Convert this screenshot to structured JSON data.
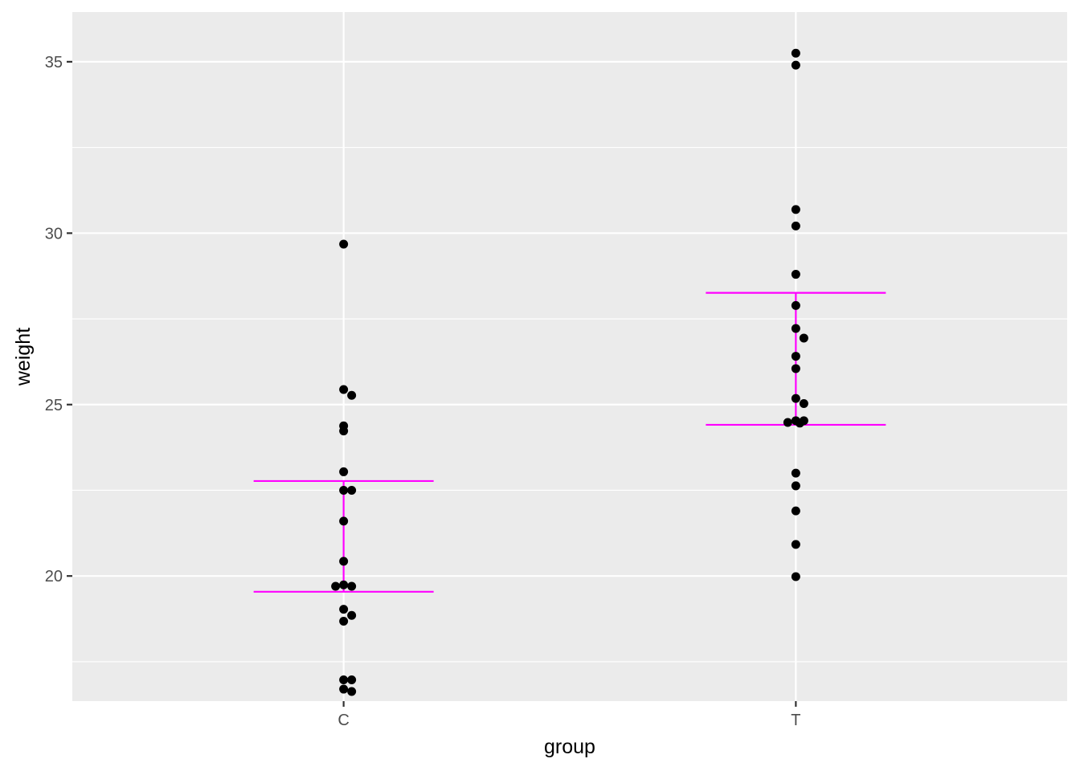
{
  "chart_data": {
    "type": "scatter",
    "xlabel": "group",
    "ylabel": "weight",
    "categories": [
      "C",
      "T"
    ],
    "ylim": [
      16.35,
      36.45
    ],
    "y_ticks": [
      20,
      25,
      30,
      35
    ],
    "grid": true,
    "points": [
      {
        "group": "C",
        "weight": 29.68
      },
      {
        "group": "C",
        "weight": 25.44
      },
      {
        "group": "C",
        "weight": 25.27
      },
      {
        "group": "C",
        "weight": 24.38
      },
      {
        "group": "C",
        "weight": 24.23
      },
      {
        "group": "C",
        "weight": 23.04
      },
      {
        "group": "C",
        "weight": 22.5
      },
      {
        "group": "C",
        "weight": 22.5
      },
      {
        "group": "C",
        "weight": 21.6
      },
      {
        "group": "C",
        "weight": 20.43
      },
      {
        "group": "C",
        "weight": 19.74
      },
      {
        "group": "C",
        "weight": 19.7
      },
      {
        "group": "C",
        "weight": 19.7
      },
      {
        "group": "C",
        "weight": 19.03
      },
      {
        "group": "C",
        "weight": 18.85
      },
      {
        "group": "C",
        "weight": 18.68
      },
      {
        "group": "C",
        "weight": 16.97
      },
      {
        "group": "C",
        "weight": 16.97
      },
      {
        "group": "C",
        "weight": 16.7
      },
      {
        "group": "C",
        "weight": 16.63
      },
      {
        "group": "T",
        "weight": 35.25
      },
      {
        "group": "T",
        "weight": 34.9
      },
      {
        "group": "T",
        "weight": 30.69
      },
      {
        "group": "T",
        "weight": 30.21
      },
      {
        "group": "T",
        "weight": 28.8
      },
      {
        "group": "T",
        "weight": 27.89
      },
      {
        "group": "T",
        "weight": 27.22
      },
      {
        "group": "T",
        "weight": 26.94
      },
      {
        "group": "T",
        "weight": 26.41
      },
      {
        "group": "T",
        "weight": 26.05
      },
      {
        "group": "T",
        "weight": 25.18
      },
      {
        "group": "T",
        "weight": 25.03
      },
      {
        "group": "T",
        "weight": 24.53
      },
      {
        "group": "T",
        "weight": 24.53
      },
      {
        "group": "T",
        "weight": 24.48
      },
      {
        "group": "T",
        "weight": 24.46
      },
      {
        "group": "T",
        "weight": 23.0
      },
      {
        "group": "T",
        "weight": 22.63
      },
      {
        "group": "T",
        "weight": 21.9
      },
      {
        "group": "T",
        "weight": 20.92
      },
      {
        "group": "T",
        "weight": 19.98
      }
    ],
    "point_color": "#000000",
    "summary_bars": [
      {
        "group": "C",
        "low": 19.54,
        "high": 22.77
      },
      {
        "group": "T",
        "low": 24.41,
        "high": 28.26
      }
    ],
    "summary_color": "#ff00ff",
    "panel_color": "#ebebeb",
    "grid_color": "#ffffff"
  }
}
